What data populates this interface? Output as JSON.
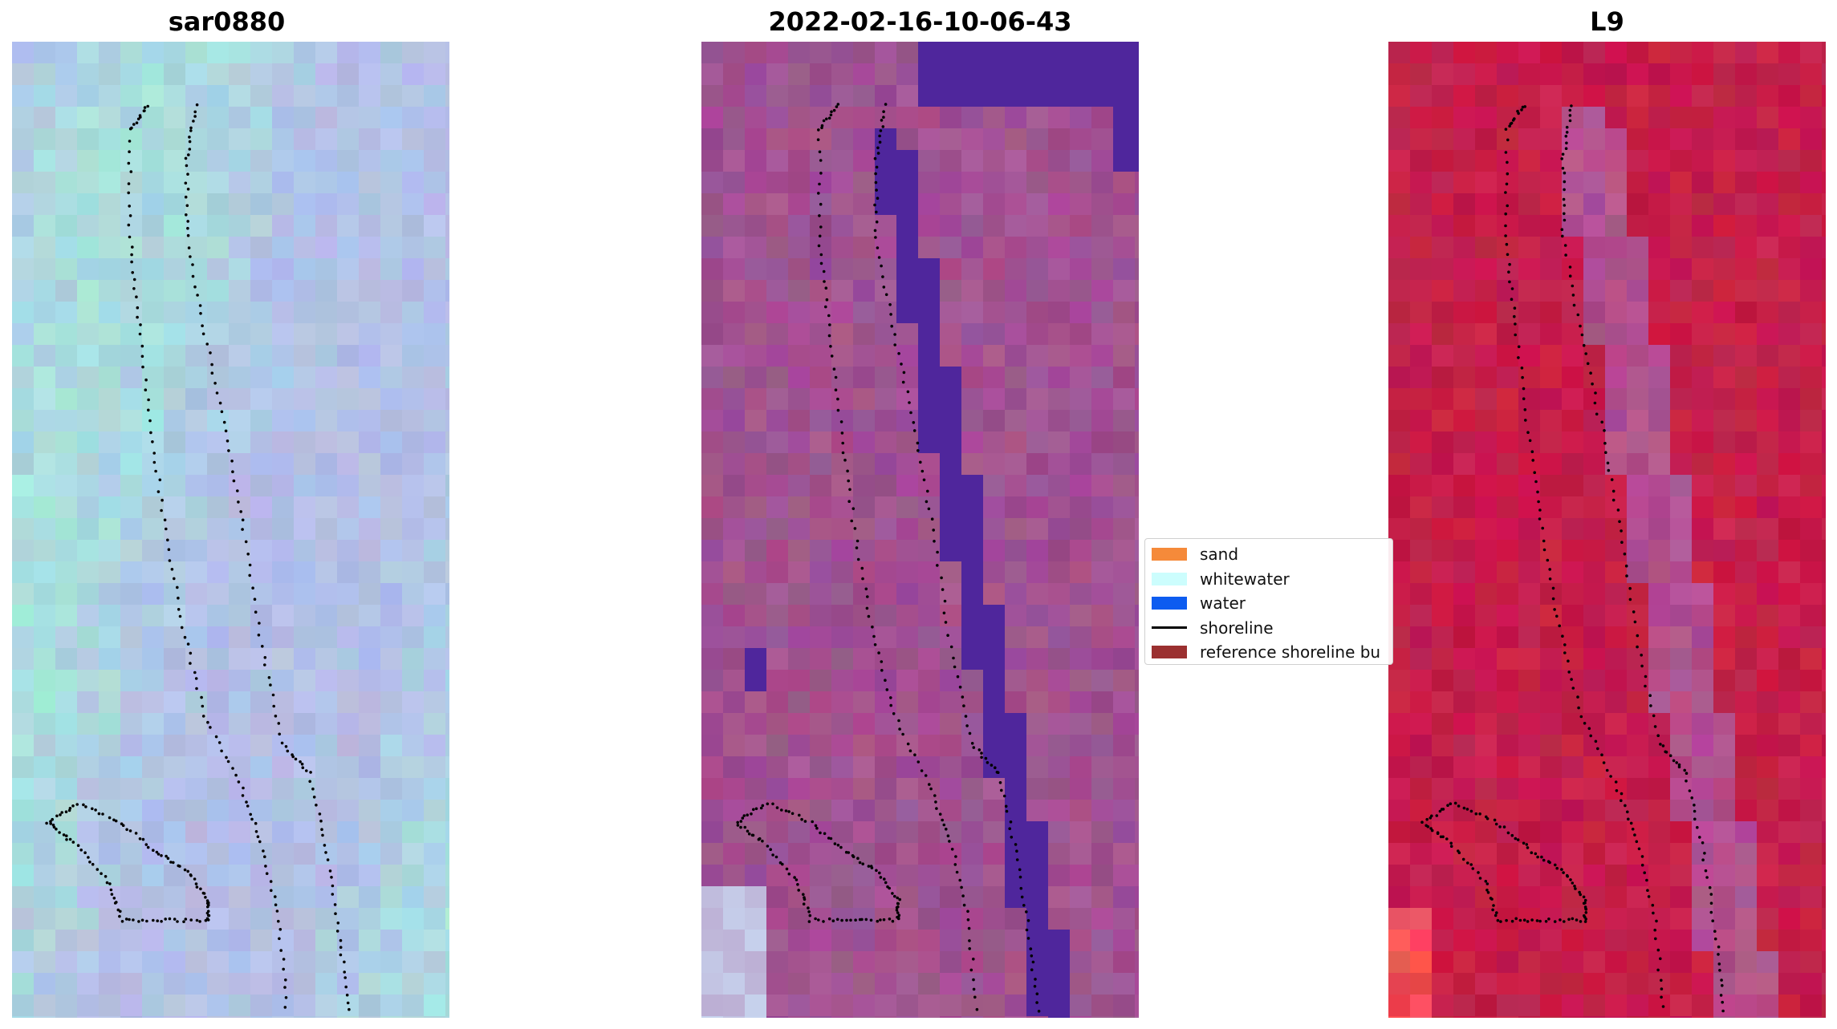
{
  "panels": [
    {
      "title": "sar0880",
      "base_color": "#b3bfe6",
      "alt_color": "#a6e8dc",
      "style": "rgb-composite"
    },
    {
      "title": "2022-02-16-10-06-43",
      "base_color": "#a15291",
      "water_color": "#4f269c",
      "style": "classified"
    },
    {
      "title": "L9",
      "base_color": "#c51e4a",
      "alt_color": "#b1508f",
      "style": "false-color"
    }
  ],
  "legend": {
    "items": [
      {
        "label": "sand",
        "color": "#f58a3a",
        "kind": "patch"
      },
      {
        "label": "whitewater",
        "color": "#ccfdfd",
        "kind": "patch"
      },
      {
        "label": "water",
        "color": "#0d5cf0",
        "kind": "patch"
      },
      {
        "label": "shoreline",
        "color": "#000000",
        "kind": "line"
      },
      {
        "label": "reference shoreline bu",
        "color": "#9b3030",
        "kind": "patch"
      }
    ]
  }
}
